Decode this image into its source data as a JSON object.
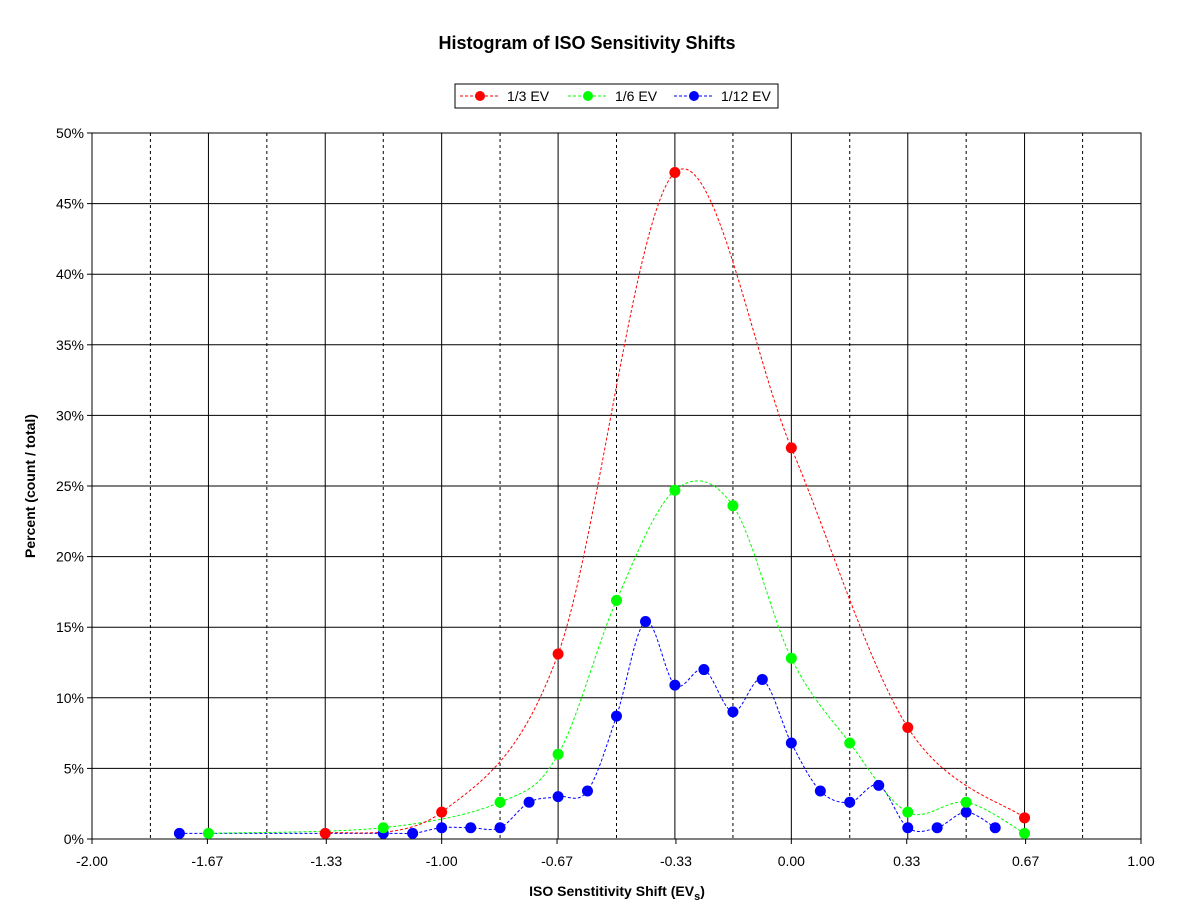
{
  "chart_data": {
    "type": "scatter",
    "title": "Histogram of ISO Sensitivity Shifts",
    "xlabel": "ISO Senstitivity Shift (EV",
    "xlabel_sub": "s",
    "xlabel_close": ")",
    "ylabel": "Percent (count / total)",
    "xlim": [
      -2.0,
      1.0
    ],
    "ylim": [
      0,
      50
    ],
    "x_ticks": [
      -2.0,
      -1.67,
      -1.33,
      -1.0,
      -0.67,
      -0.33,
      0.0,
      0.33,
      0.67,
      1.0
    ],
    "x_tick_labels": [
      "-2.00",
      "-1.67",
      "-1.33",
      "-1.00",
      "-0.67",
      "-0.33",
      "0.00",
      "0.33",
      "0.67",
      "1.00"
    ],
    "y_ticks": [
      0,
      5,
      10,
      15,
      20,
      25,
      30,
      35,
      40,
      45,
      50
    ],
    "y_tick_labels": [
      "0%",
      "5%",
      "10%",
      "15%",
      "20%",
      "25%",
      "30%",
      "35%",
      "40%",
      "45%",
      "50%"
    ],
    "major_grid_x": [
      -1.667,
      -1.333,
      -1.0,
      -0.667,
      -0.333,
      0.0,
      0.333,
      0.667
    ],
    "dashed_grid_x": [
      -1.833,
      -1.5,
      -1.167,
      -0.833,
      -0.5,
      -0.167,
      0.167,
      0.5,
      0.833
    ],
    "grid": true,
    "legend_position": "top-center",
    "series": [
      {
        "name": "1/3 EV",
        "color": "#ff0000",
        "points": [
          {
            "x": -1.333,
            "y": 0.4
          },
          {
            "x": -1.0,
            "y": 1.9
          },
          {
            "x": -0.667,
            "y": 13.1
          },
          {
            "x": -0.333,
            "y": 47.2
          },
          {
            "x": 0.0,
            "y": 27.7
          },
          {
            "x": 0.333,
            "y": 7.9
          },
          {
            "x": 0.667,
            "y": 1.5
          }
        ]
      },
      {
        "name": "1/6 EV",
        "color": "#00ff00",
        "points": [
          {
            "x": -1.667,
            "y": 0.4
          },
          {
            "x": -1.167,
            "y": 0.8
          },
          {
            "x": -0.833,
            "y": 2.6
          },
          {
            "x": -0.667,
            "y": 6.0
          },
          {
            "x": -0.5,
            "y": 16.9
          },
          {
            "x": -0.333,
            "y": 24.7
          },
          {
            "x": -0.167,
            "y": 23.6
          },
          {
            "x": 0.0,
            "y": 12.8
          },
          {
            "x": 0.167,
            "y": 6.8
          },
          {
            "x": 0.333,
            "y": 1.9
          },
          {
            "x": 0.5,
            "y": 2.6
          },
          {
            "x": 0.667,
            "y": 0.4
          }
        ]
      },
      {
        "name": "1/12 EV",
        "color": "#0000ff",
        "points": [
          {
            "x": -1.75,
            "y": 0.4
          },
          {
            "x": -1.167,
            "y": 0.4
          },
          {
            "x": -1.083,
            "y": 0.4
          },
          {
            "x": -1.0,
            "y": 0.8
          },
          {
            "x": -0.917,
            "y": 0.8
          },
          {
            "x": -0.833,
            "y": 0.8
          },
          {
            "x": -0.75,
            "y": 2.6
          },
          {
            "x": -0.667,
            "y": 3.0
          },
          {
            "x": -0.583,
            "y": 3.4
          },
          {
            "x": -0.5,
            "y": 8.7
          },
          {
            "x": -0.417,
            "y": 15.4
          },
          {
            "x": -0.333,
            "y": 10.9
          },
          {
            "x": -0.25,
            "y": 12.0
          },
          {
            "x": -0.167,
            "y": 9.0
          },
          {
            "x": -0.083,
            "y": 11.3
          },
          {
            "x": 0.0,
            "y": 6.8
          },
          {
            "x": 0.083,
            "y": 3.4
          },
          {
            "x": 0.167,
            "y": 2.6
          },
          {
            "x": 0.25,
            "y": 3.8
          },
          {
            "x": 0.333,
            "y": 0.8
          },
          {
            "x": 0.417,
            "y": 0.8
          },
          {
            "x": 0.5,
            "y": 1.9
          },
          {
            "x": 0.583,
            "y": 0.8
          }
        ]
      }
    ]
  }
}
